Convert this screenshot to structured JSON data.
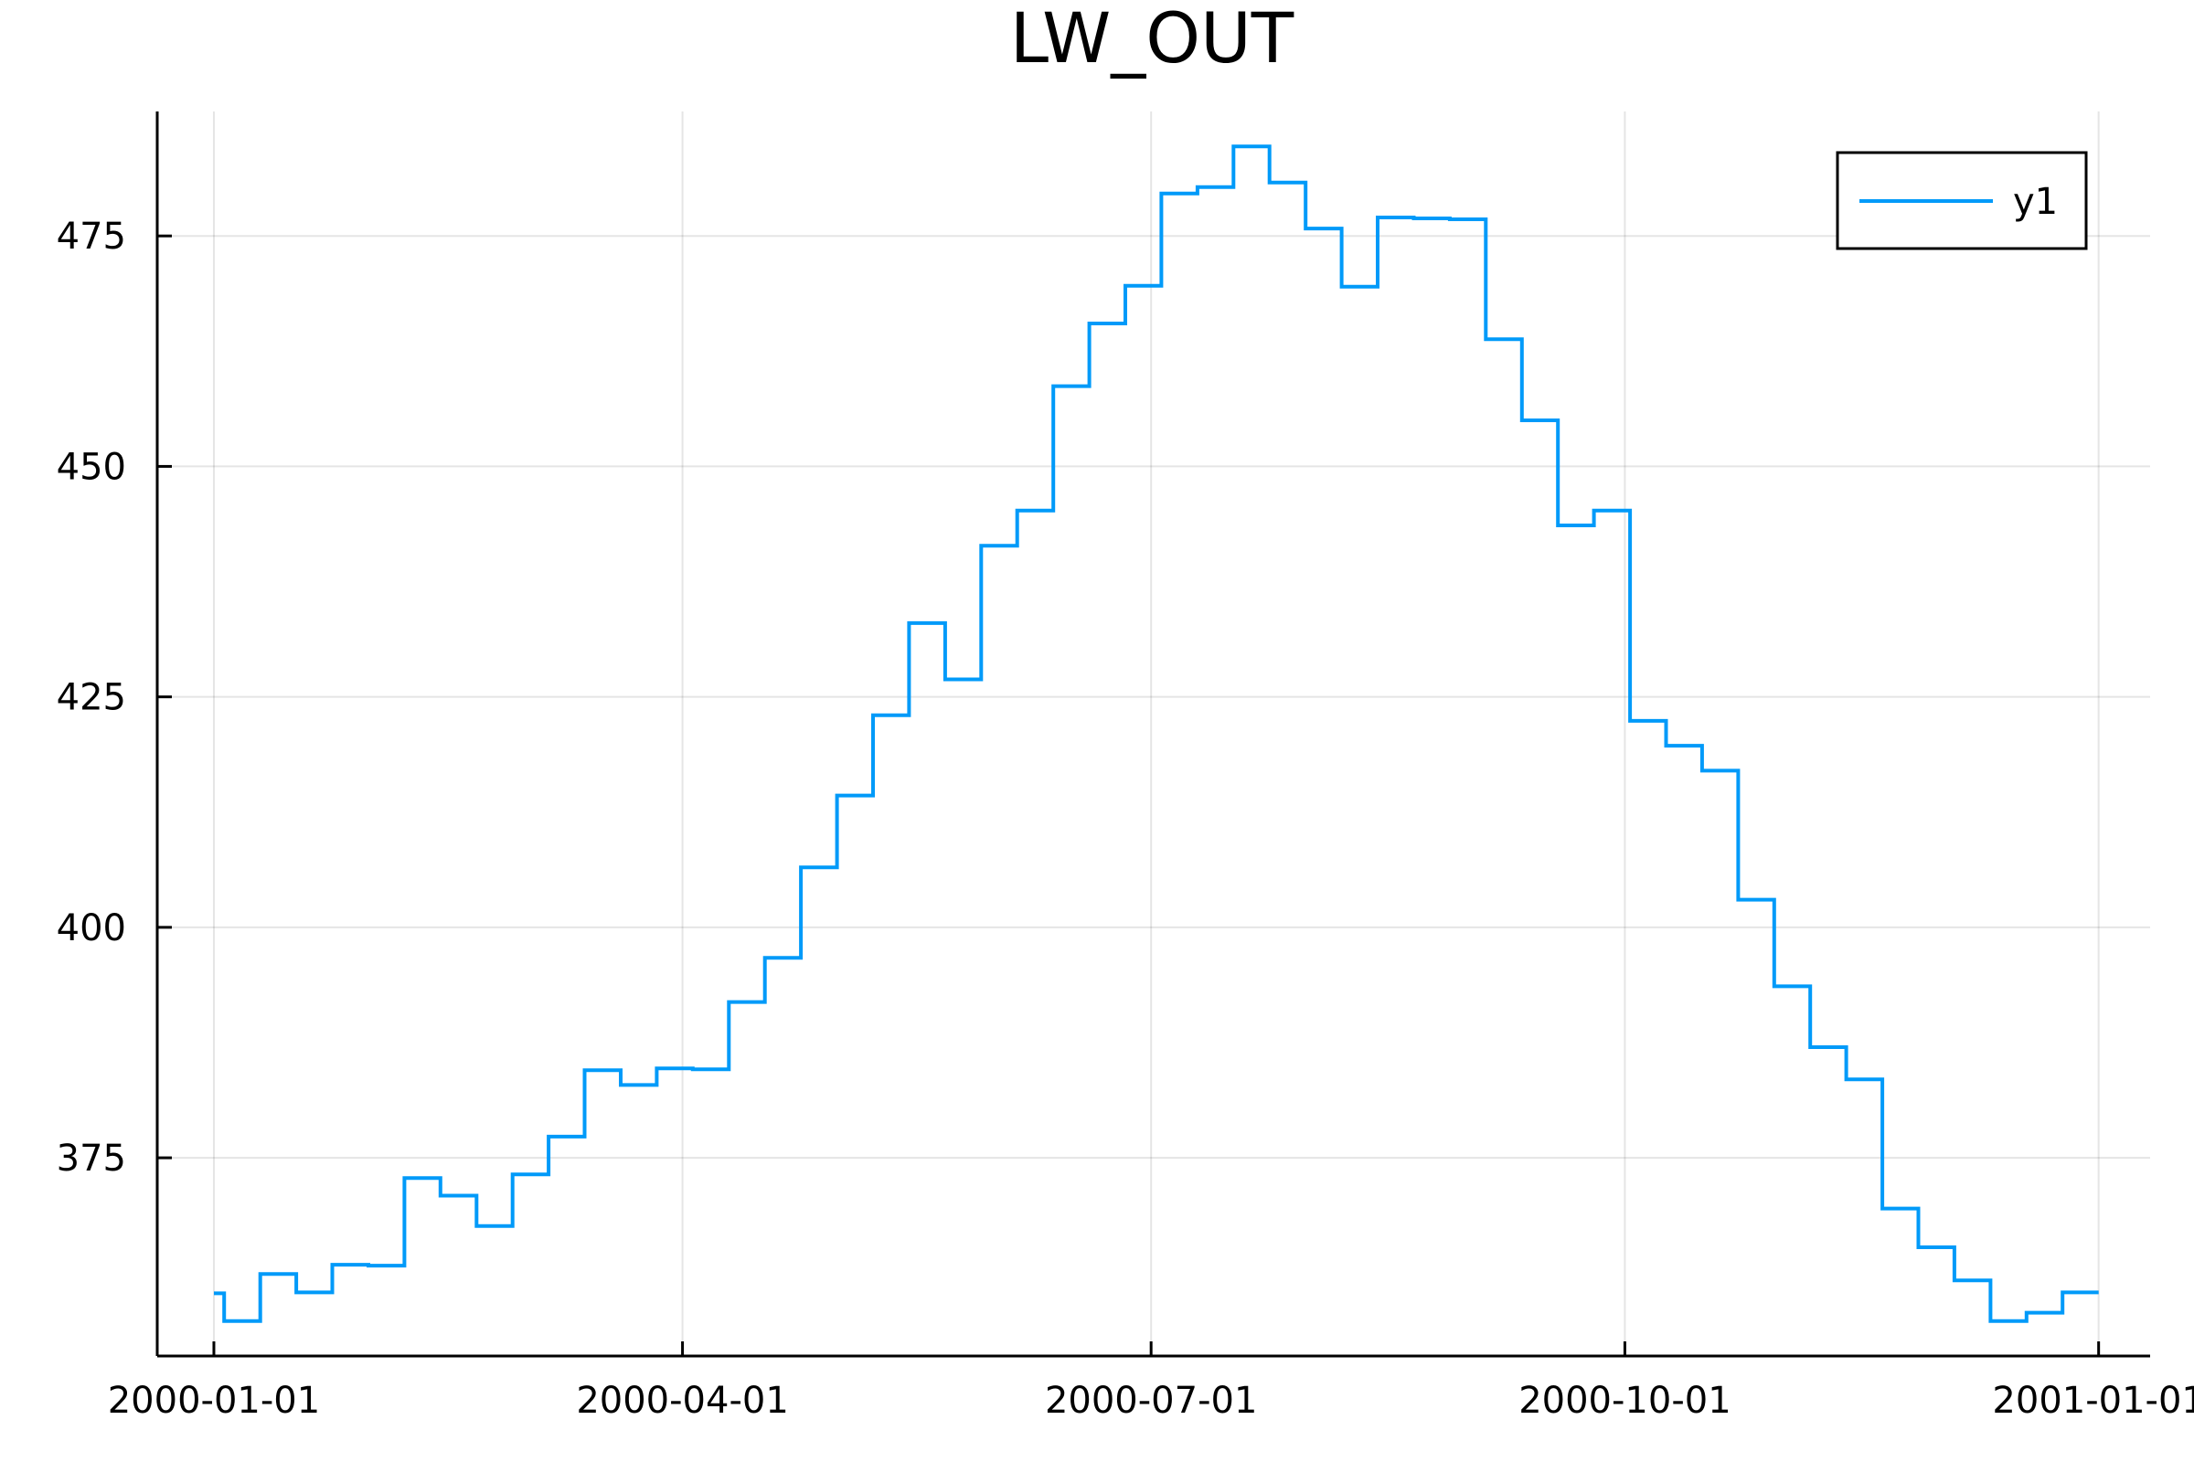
{
  "chart_data": {
    "type": "line",
    "drawstyle": "steps-post",
    "title": "LW_OUT",
    "xlabel": "",
    "ylabel": "",
    "x_ticks": [
      "2000-01-01",
      "2000-04-01",
      "2000-07-01",
      "2000-10-01",
      "2001-01-01"
    ],
    "y_ticks": [
      "375",
      "400",
      "425",
      "450",
      "475"
    ],
    "xlim": [
      "1999-12-21",
      "2001-01-11"
    ],
    "ylim": [
      353.5,
      488.5
    ],
    "grid": true,
    "legend": {
      "position": "top-right"
    },
    "series": [
      {
        "name": "y1",
        "color": "#009af9",
        "x": [
          "2000-01-01",
          "2000-01-03",
          "2000-01-10",
          "2000-01-17",
          "2000-01-24",
          "2000-01-31",
          "2000-02-07",
          "2000-02-14",
          "2000-02-21",
          "2000-02-28",
          "2000-03-06",
          "2000-03-13",
          "2000-03-20",
          "2000-03-27",
          "2000-04-03",
          "2000-04-10",
          "2000-04-17",
          "2000-04-24",
          "2000-05-01",
          "2000-05-08",
          "2000-05-15",
          "2000-05-22",
          "2000-05-29",
          "2000-06-05",
          "2000-06-12",
          "2000-06-19",
          "2000-06-26",
          "2000-07-03",
          "2000-07-10",
          "2000-07-17",
          "2000-07-24",
          "2000-07-31",
          "2000-08-07",
          "2000-08-14",
          "2000-08-21",
          "2000-08-28",
          "2000-09-04",
          "2000-09-11",
          "2000-09-18",
          "2000-09-25",
          "2000-10-02",
          "2000-10-09",
          "2000-10-16",
          "2000-10-23",
          "2000-10-30",
          "2000-11-06",
          "2000-11-13",
          "2000-11-20",
          "2000-11-27",
          "2000-12-04",
          "2000-12-11",
          "2000-12-18",
          "2000-12-25",
          "2001-01-01"
        ],
        "values": [
          360.3,
          357.3,
          362.4,
          360.4,
          363.4,
          363.3,
          372.8,
          370.9,
          367.6,
          373.2,
          377.3,
          384.5,
          382.9,
          384.7,
          384.6,
          391.9,
          396.7,
          406.5,
          414.3,
          423.0,
          433.0,
          426.9,
          441.4,
          445.2,
          458.7,
          465.5,
          469.6,
          479.6,
          480.3,
          484.7,
          480.8,
          475.8,
          469.5,
          477.0,
          476.9,
          476.8,
          463.8,
          455.0,
          443.6,
          445.2,
          422.4,
          419.7,
          417.0,
          403.0,
          393.6,
          387.0,
          383.5,
          369.5,
          365.3,
          361.7,
          357.3,
          358.2,
          360.4,
          360.4
        ]
      }
    ]
  }
}
